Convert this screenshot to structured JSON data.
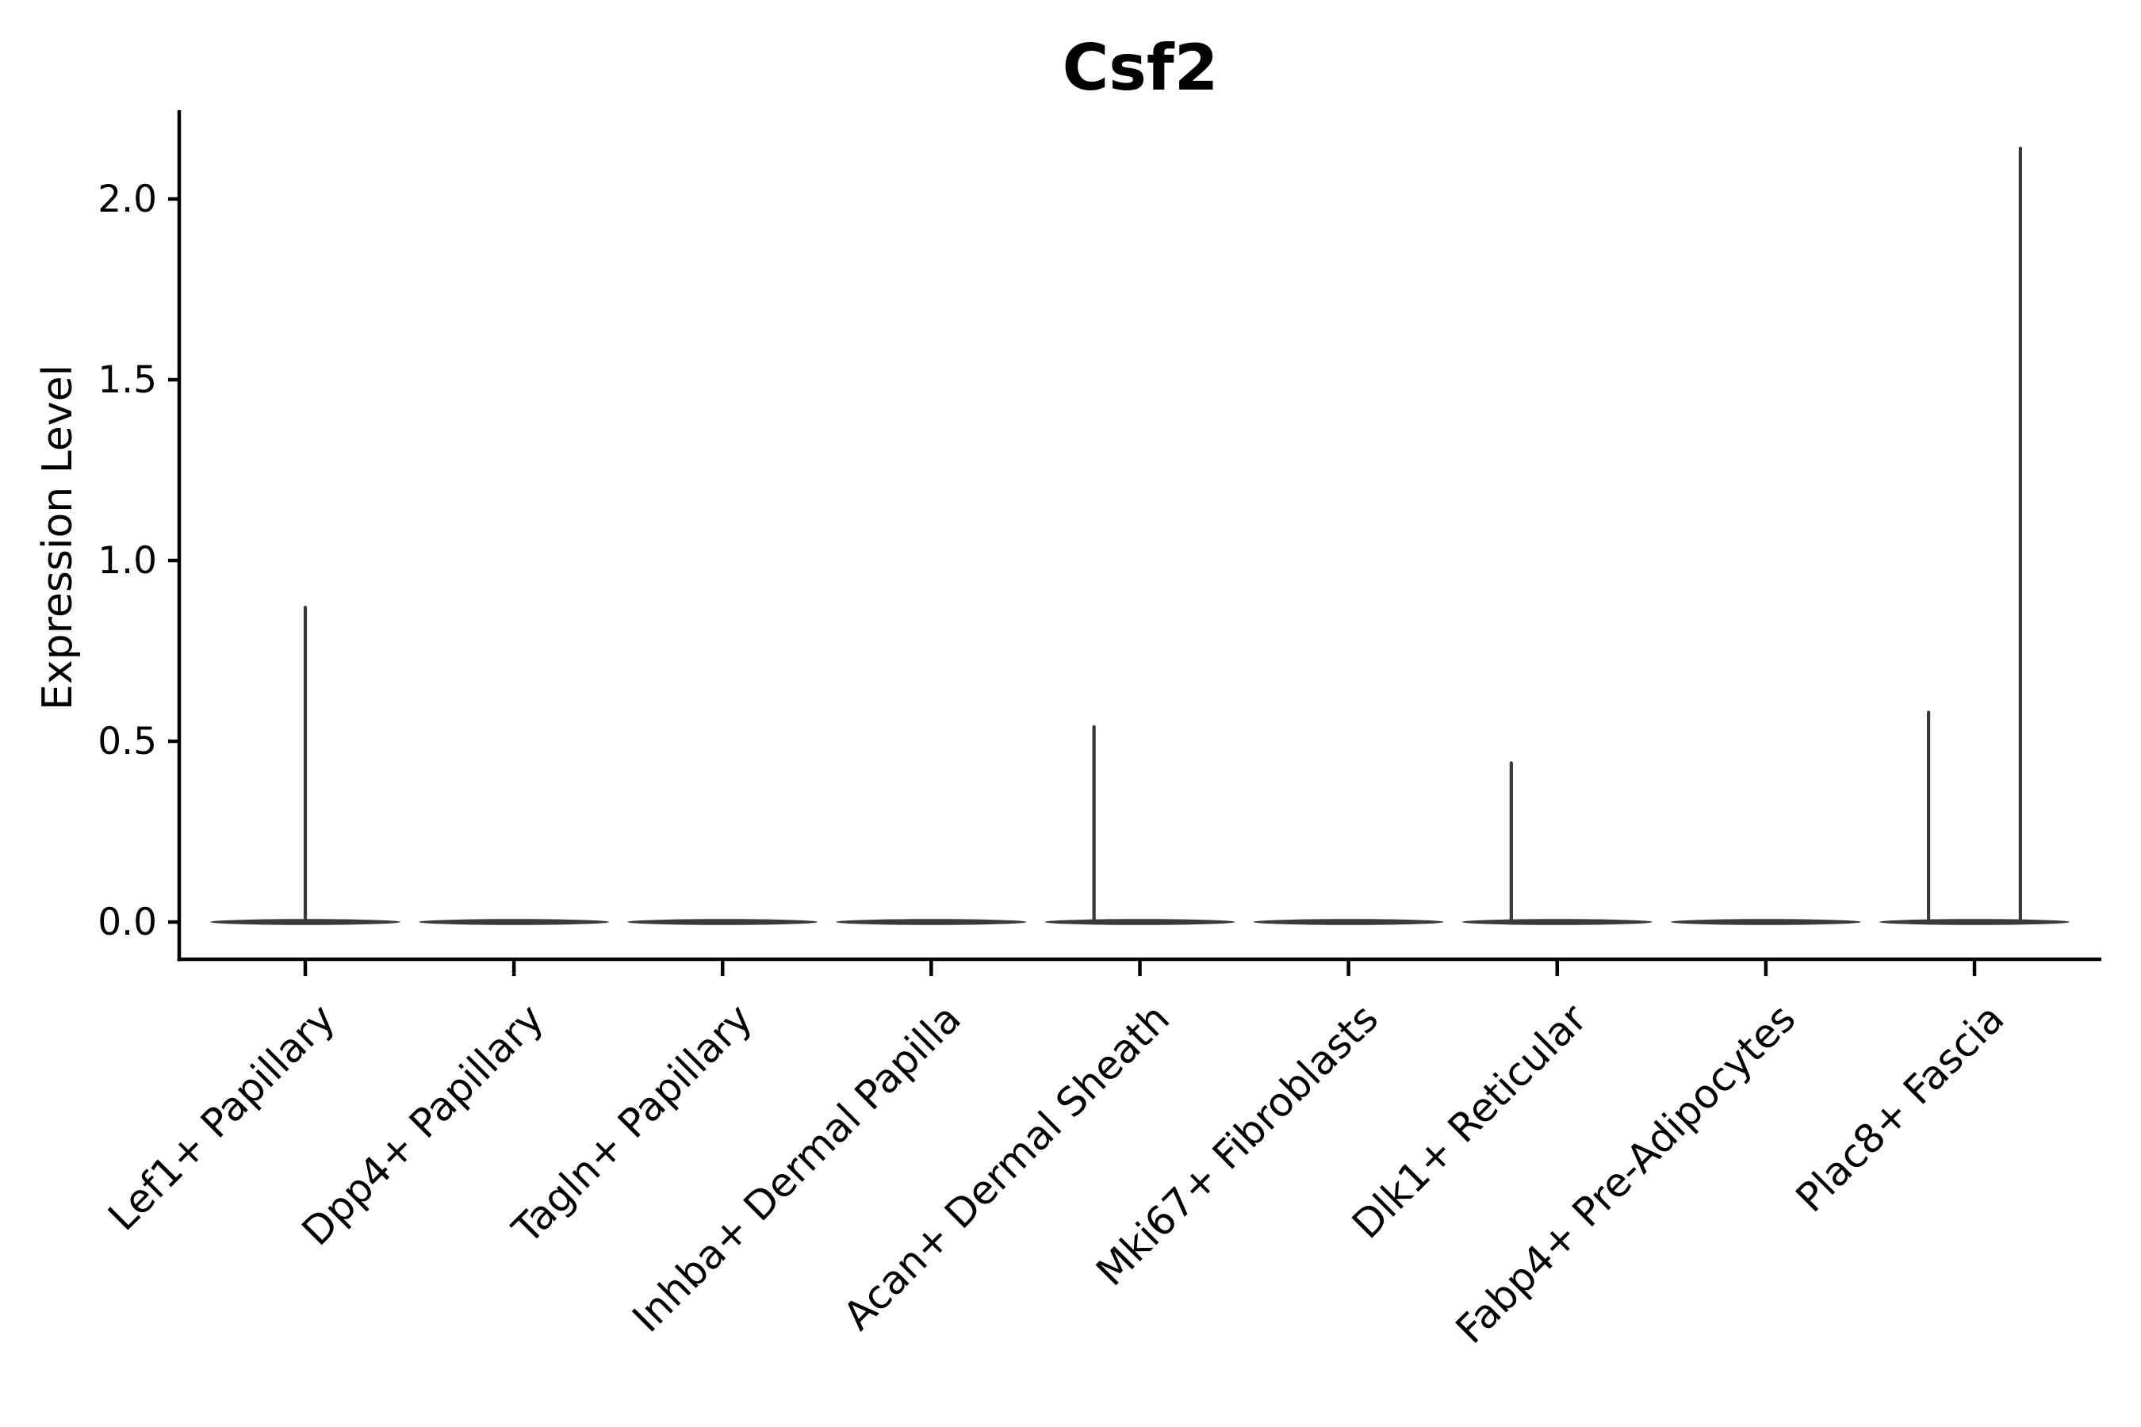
{
  "figure": {
    "title": "Csf2",
    "ylabel": "Expression Level"
  },
  "chart_data": {
    "type": "violin",
    "title": "Csf2",
    "xlabel": "",
    "ylabel": "Expression Level",
    "categories": [
      "Lef1+ Papillary",
      "Dpp4+ Papillary",
      "Tagln+ Papillary",
      "Inhba+ Dermal Papilla",
      "Acan+ Dermal Sheath",
      "Mki67+ Fibroblasts",
      "Dlk1+ Reticular",
      "Fabp4+ Pre-Adipocytes",
      "Plac8+ Fascia"
    ],
    "ytick_labels": [
      "0.0",
      "0.5",
      "1.0",
      "1.5",
      "2.0"
    ],
    "ylim": [
      -0.1,
      2.24
    ],
    "grid": false,
    "legend": null,
    "violin_color": "#3a3a3a",
    "axis_color": "#000000",
    "base_halfwidth_frac": 0.456,
    "violins": [
      {
        "category": "Lef1+ Papillary",
        "max_expression": 0.87,
        "spikes": [
          {
            "offset_frac": 0.0,
            "value": 0.87
          }
        ]
      },
      {
        "category": "Dpp4+ Papillary",
        "max_expression": 0.0,
        "spikes": []
      },
      {
        "category": "Tagln+ Papillary",
        "max_expression": 0.0,
        "spikes": []
      },
      {
        "category": "Inhba+ Dermal Papilla",
        "max_expression": 0.0,
        "spikes": []
      },
      {
        "category": "Acan+ Dermal Sheath",
        "max_expression": 0.54,
        "spikes": [
          {
            "offset_frac": -0.22,
            "value": 0.54
          }
        ]
      },
      {
        "category": "Mki67+ Fibroblasts",
        "max_expression": 0.0,
        "spikes": []
      },
      {
        "category": "Dlk1+ Reticular",
        "max_expression": 0.44,
        "spikes": [
          {
            "offset_frac": -0.22,
            "value": 0.44
          }
        ]
      },
      {
        "category": "Fabp4+ Pre-Adipocytes",
        "max_expression": 0.0,
        "spikes": []
      },
      {
        "category": "Plac8+ Fascia",
        "max_expression": 2.14,
        "spikes": [
          {
            "offset_frac": -0.22,
            "value": 0.58
          },
          {
            "offset_frac": 0.22,
            "value": 2.14
          }
        ]
      }
    ]
  }
}
